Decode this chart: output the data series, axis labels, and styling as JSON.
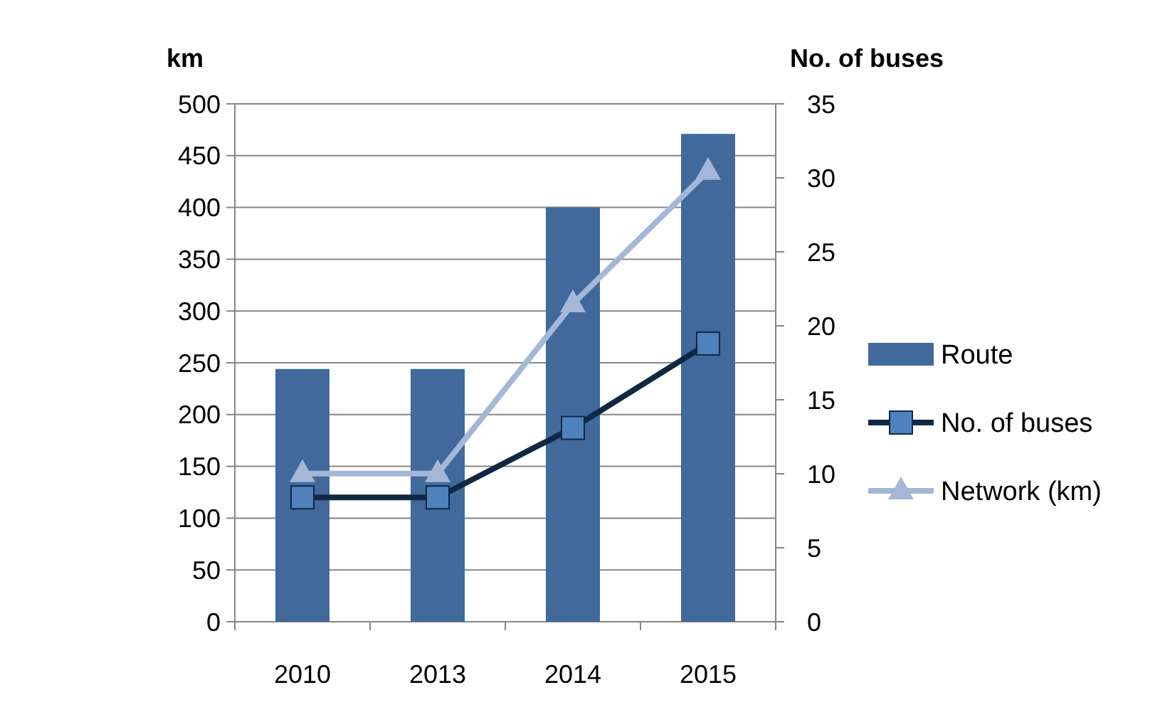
{
  "chart_data": {
    "type": "bar",
    "ylabel": "km",
    "y2label": "No. of buses",
    "categories": [
      "2010",
      "2013",
      "2014",
      "2015"
    ],
    "series": [
      {
        "name": "Route",
        "color": "#41699c",
        "values": [
          244,
          244,
          400,
          471
        ]
      },
      {
        "name": "No. of buses",
        "type": "line",
        "axis": "y2",
        "color": "#0f2844",
        "marker": "square",
        "values": [
          8.4,
          8.4,
          13.1,
          18.8
        ]
      },
      {
        "name": "Network (km)",
        "type": "line",
        "color": "#a5b7d6",
        "marker": "triangle",
        "values": [
          143,
          143,
          307,
          435
        ]
      }
    ],
    "ylim": [
      0,
      500
    ],
    "yticks": [
      0,
      50,
      100,
      150,
      200,
      250,
      300,
      350,
      400,
      450,
      500
    ],
    "y2lim": [
      0,
      35
    ],
    "y2ticks": [
      0,
      5,
      10,
      15,
      20,
      25,
      30,
      35
    ],
    "grid": "y",
    "legend": "right"
  }
}
